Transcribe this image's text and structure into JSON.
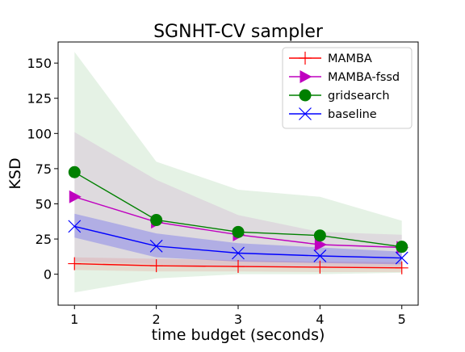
{
  "chart_data": {
    "type": "line",
    "title": "SGNHT-CV sampler",
    "xlabel": "time budget (seconds)",
    "ylabel": "KSD",
    "x": [
      1,
      2,
      3,
      4,
      5
    ],
    "xlim": [
      0.8,
      5.2
    ],
    "ylim": [
      -22,
      165
    ],
    "xticks": [
      1,
      2,
      3,
      4,
      5
    ],
    "yticks": [
      0,
      25,
      50,
      75,
      100,
      125,
      150
    ],
    "grid": false,
    "legend_position": "top-right",
    "series": [
      {
        "name": "MAMBA",
        "color": "#ff0000",
        "marker": "plus",
        "values": [
          7.5,
          6,
          5.5,
          5,
          4.5
        ],
        "band_low": [
          3,
          2,
          2,
          1.5,
          1.5
        ],
        "band_high": [
          12,
          11,
          10,
          9,
          8.5
        ]
      },
      {
        "name": "MAMBA-fssd",
        "color": "#bf00bf",
        "marker": "triangle-right",
        "values": [
          55,
          37,
          28,
          21,
          19
        ],
        "band_low": [
          9,
          7,
          5,
          5,
          5
        ],
        "band_high": [
          101,
          67,
          42,
          30,
          28
        ]
      },
      {
        "name": "gridsearch",
        "color": "#008000",
        "marker": "circle",
        "values": [
          72.5,
          38.5,
          30,
          27.5,
          19.5
        ],
        "band_low": [
          -13,
          -3,
          0,
          0,
          1
        ],
        "band_high": [
          158,
          80,
          60,
          55,
          38
        ]
      },
      {
        "name": "baseline",
        "color": "#0000ff",
        "marker": "x",
        "values": [
          34,
          20,
          15,
          13,
          11.5
        ],
        "band_low": [
          26,
          12,
          9,
          8,
          7
        ],
        "band_high": [
          43,
          29,
          22,
          19,
          16
        ]
      }
    ]
  }
}
